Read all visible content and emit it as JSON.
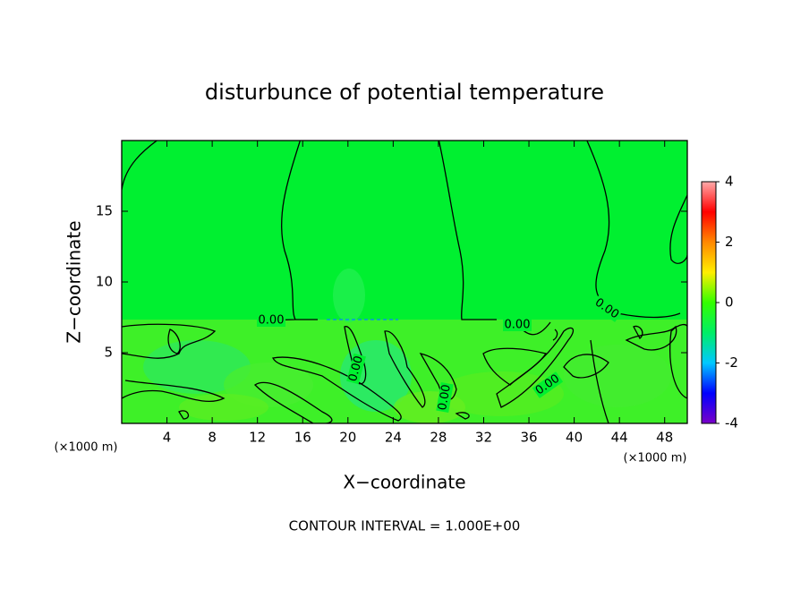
{
  "chart_data": {
    "type": "contour",
    "title": "disturbunce of potential temperature",
    "x_label": "X−coordinate",
    "y_label": "Z−coordinate",
    "x_unit": "(×1000 m)",
    "y_unit": "(×1000 m)",
    "footer": "CONTOUR INTERVAL = 1.000E+00",
    "xlim": [
      0,
      50
    ],
    "xticks": [
      4,
      8,
      12,
      16,
      20,
      24,
      28,
      32,
      36,
      40,
      44,
      48
    ],
    "ylim": [
      0,
      20
    ],
    "yticks": [
      5,
      10,
      15
    ],
    "contour_levels": [
      0
    ],
    "contour_value_labels": [
      "0.00"
    ],
    "colorbar_lim": [
      -4,
      4
    ],
    "colorbar_ticks": [
      -4,
      -2,
      0,
      2,
      4
    ],
    "colorscale": [
      "#7a00c8",
      "#0000ff",
      "#00c8ff",
      "#00ee66",
      "#33ff00",
      "#ffee00",
      "#ff8800",
      "#ff0000",
      "#ffaaaa"
    ],
    "field_color": "#00f030"
  }
}
